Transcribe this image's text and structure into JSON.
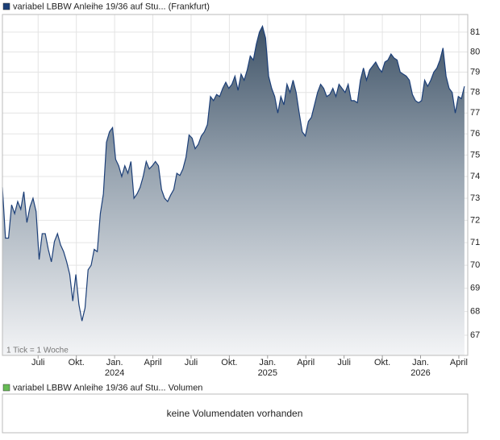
{
  "chart_data": {
    "type": "area",
    "title": "variabel LBBW Anleihe 19/36 auf Stu... (Frankfurt)",
    "tick_note": "1 Tick = 1 Woche",
    "log": true,
    "grid": true,
    "xlim": [
      3.2,
      39.7
    ],
    "ylim": [
      66.16,
      81.9
    ],
    "yticks": [
      67,
      68,
      69,
      70,
      71,
      72,
      73,
      74,
      75,
      76,
      77,
      78,
      79,
      80,
      81
    ],
    "xticks": [
      {
        "value": 6,
        "label": "Juli"
      },
      {
        "value": 9,
        "label": "Okt."
      },
      {
        "value": 12,
        "label": "Jan.",
        "year": "2024"
      },
      {
        "value": 15,
        "label": "April"
      },
      {
        "value": 18,
        "label": "Juli"
      },
      {
        "value": 21,
        "label": "Okt."
      },
      {
        "value": 24,
        "label": "Jan.",
        "year": "2025"
      },
      {
        "value": 27,
        "label": "April"
      },
      {
        "value": 30,
        "label": "Juli"
      },
      {
        "value": 33,
        "label": "Okt."
      },
      {
        "value": 36,
        "label": "Jan.",
        "year": "2026"
      },
      {
        "value": 39,
        "label": "April"
      }
    ],
    "x": [
      3.2,
      3.44,
      3.68,
      3.92,
      4.16,
      4.4,
      4.64,
      4.88,
      5.12,
      5.36,
      5.6,
      5.84,
      6.08,
      6.32,
      6.56,
      6.8,
      7.04,
      7.28,
      7.52,
      7.76,
      8,
      8.24,
      8.48,
      8.72,
      8.96,
      9.2,
      9.44,
      9.68,
      9.92,
      10.16,
      10.4,
      10.64,
      10.88,
      11.12,
      11.36,
      11.6,
      11.84,
      12.08,
      12.32,
      12.56,
      12.8,
      13.04,
      13.28,
      13.52,
      13.76,
      14,
      14.24,
      14.48,
      14.72,
      14.96,
      15.2,
      15.44,
      15.68,
      15.92,
      16.16,
      16.4,
      16.64,
      16.88,
      17.12,
      17.36,
      17.6,
      17.84,
      18.08,
      18.32,
      18.56,
      18.8,
      19.04,
      19.28,
      19.52,
      19.76,
      20,
      20.24,
      20.48,
      20.72,
      20.96,
      21.2,
      21.44,
      21.68,
      21.92,
      22.16,
      22.4,
      22.64,
      22.88,
      23.12,
      23.36,
      23.6,
      23.84,
      24.08,
      24.32,
      24.56,
      24.8,
      25.04,
      25.28,
      25.52,
      25.76,
      26,
      26.24,
      26.48,
      26.72,
      26.96,
      27.2,
      27.44,
      27.68,
      27.92,
      28.16,
      28.4,
      28.64,
      28.88,
      29.12,
      29.36,
      29.6,
      29.84,
      30.08,
      30.32,
      30.56,
      30.8,
      31.04,
      31.28,
      31.52,
      31.76,
      32,
      32.24,
      32.48,
      32.72,
      32.96,
      33.2,
      33.44,
      33.68,
      33.92,
      34.16,
      34.4,
      34.64,
      34.88,
      35.12,
      35.36,
      35.6,
      35.84,
      36.08,
      36.32,
      36.56,
      36.8,
      37.04,
      37.28,
      37.52,
      37.76,
      38,
      38.24,
      38.48,
      38.72,
      38.96,
      39.2,
      39.44
    ],
    "series": [
      {
        "name": "variabel LBBW Anleihe 19/36 auf Stu... (Frankfurt)",
        "color": "#1c3f78",
        "values": [
          73.5,
          71.2,
          71.2,
          72.7,
          72.3,
          72.85,
          72.5,
          73.3,
          71.9,
          72.6,
          73.0,
          72.4,
          70.25,
          71.4,
          71.4,
          70.7,
          70.15,
          71.05,
          71.4,
          70.9,
          70.6,
          70.15,
          69.6,
          68.45,
          69.6,
          68.3,
          67.6,
          68.15,
          69.8,
          70.0,
          70.7,
          70.6,
          72.3,
          73.2,
          75.6,
          76.1,
          76.3,
          74.8,
          74.5,
          74.0,
          74.5,
          74.15,
          74.7,
          73.0,
          73.2,
          73.5,
          74.0,
          74.7,
          74.35,
          74.5,
          74.7,
          74.5,
          73.4,
          73.0,
          72.85,
          73.15,
          73.4,
          74.15,
          74.05,
          74.35,
          74.9,
          75.95,
          75.8,
          75.3,
          75.5,
          75.9,
          76.1,
          76.45,
          77.8,
          77.6,
          77.9,
          77.8,
          78.2,
          78.5,
          78.2,
          78.4,
          78.8,
          78.1,
          78.9,
          78.6,
          79.1,
          79.8,
          79.6,
          80.4,
          81.0,
          81.3,
          80.7,
          78.8,
          78.2,
          77.8,
          77.0,
          77.8,
          77.4,
          78.4,
          78.0,
          78.6,
          78.0,
          77.0,
          76.1,
          75.9,
          76.6,
          76.8,
          77.4,
          78.0,
          78.4,
          78.2,
          77.8,
          77.9,
          78.2,
          77.8,
          78.4,
          78.2,
          78.0,
          78.4,
          77.6,
          77.6,
          77.5,
          78.6,
          79.2,
          78.6,
          79.1,
          79.3,
          79.5,
          79.2,
          79.0,
          79.5,
          79.6,
          79.9,
          79.7,
          79.6,
          79.0,
          78.9,
          78.8,
          78.6,
          77.9,
          77.6,
          77.5,
          77.6,
          78.6,
          78.3,
          78.6,
          79.0,
          79.2,
          79.6,
          80.2,
          78.8,
          78.2,
          78.0,
          77.0,
          77.8,
          77.7,
          78.3
        ]
      }
    ]
  },
  "volume_panel": {
    "legend": "variabel LBBW Anleihe 19/36 auf Stu... Volumen",
    "color": "#66bb55",
    "message": "keine Volumendaten vorhanden"
  }
}
